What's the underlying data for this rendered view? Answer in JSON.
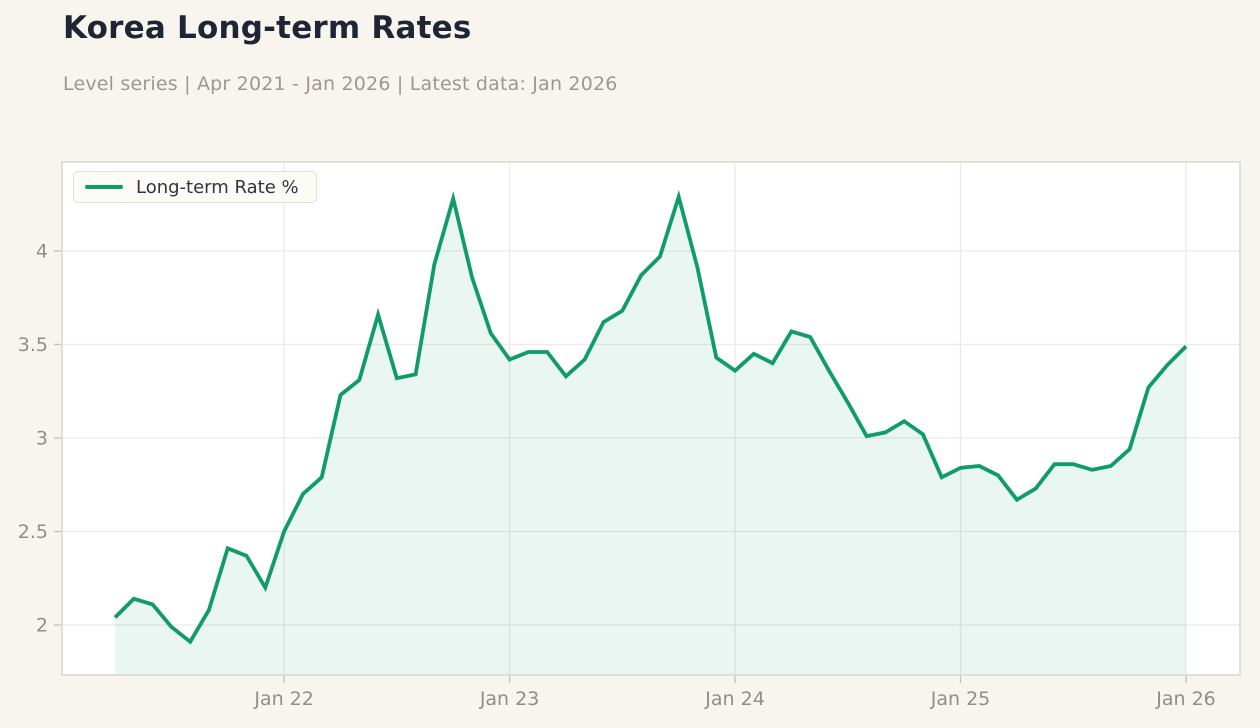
{
  "page": {
    "background": "#f8f5ef"
  },
  "header": {
    "title": "Korea Long-term Rates",
    "subtitle": "Level series | Apr 2021 - Jan 2026 | Latest data: Jan 2026"
  },
  "legend": {
    "label": "Long-term Rate %",
    "box_background": "#fcfbf6"
  },
  "colors": {
    "title": "#1e2635",
    "subtitle": "#9d978f",
    "line": "#0f9c66",
    "area_fill": "rgba(15,156,102,0.09)",
    "plot_background": "#ffffff",
    "frame": "#d8d6cf",
    "grid": "#ebebe7",
    "tick_mark": "#c2c0b9",
    "axis_text": "#908e88",
    "legend_text": "#33333d"
  },
  "chart_data": {
    "type": "area",
    "title": "Korea Long-term Rates",
    "series_name": "Long-term Rate %",
    "xlabel": "",
    "ylabel": "",
    "x_range": [
      "Apr 2021",
      "Jan 2026"
    ],
    "ylim": [
      1.73,
      4.48
    ],
    "grid": true,
    "legend_position": "top-left",
    "months": [
      "Apr 2021",
      "May 2021",
      "Jun 2021",
      "Jul 2021",
      "Aug 2021",
      "Sep 2021",
      "Oct 2021",
      "Nov 2021",
      "Dec 2021",
      "Jan 2022",
      "Feb 2022",
      "Mar 2022",
      "Apr 2022",
      "May 2022",
      "Jun 2022",
      "Jul 2022",
      "Aug 2022",
      "Sep 2022",
      "Oct 2022",
      "Nov 2022",
      "Dec 2022",
      "Jan 2023",
      "Feb 2023",
      "Mar 2023",
      "Apr 2023",
      "May 2023",
      "Jun 2023",
      "Jul 2023",
      "Aug 2023",
      "Sep 2023",
      "Oct 2023",
      "Nov 2023",
      "Dec 2023",
      "Jan 2024",
      "Feb 2024",
      "Mar 2024",
      "Apr 2024",
      "May 2024",
      "Jun 2024",
      "Jul 2024",
      "Aug 2024",
      "Sep 2024",
      "Oct 2024",
      "Nov 2024",
      "Dec 2024",
      "Jan 2025",
      "Feb 2025",
      "Mar 2025",
      "Apr 2025",
      "May 2025",
      "Jun 2025",
      "Jul 2025",
      "Aug 2025",
      "Sep 2025",
      "Oct 2025",
      "Nov 2025",
      "Dec 2025",
      "Jan 2026"
    ],
    "values": [
      2.04,
      2.14,
      2.11,
      1.99,
      1.91,
      2.08,
      2.41,
      2.37,
      2.2,
      2.5,
      2.7,
      2.79,
      3.23,
      3.31,
      3.66,
      3.32,
      3.34,
      3.93,
      4.28,
      3.86,
      3.56,
      3.42,
      3.46,
      3.46,
      3.33,
      3.42,
      3.62,
      3.68,
      3.87,
      3.97,
      4.29,
      3.91,
      3.43,
      3.36,
      3.45,
      3.4,
      3.57,
      3.54,
      3.36,
      3.19,
      3.01,
      3.03,
      3.09,
      3.02,
      2.79,
      2.84,
      2.85,
      2.8,
      2.67,
      2.73,
      2.86,
      2.86,
      2.83,
      2.85,
      2.94,
      3.27,
      3.39,
      3.49
    ],
    "y_ticks": [
      {
        "value": 2,
        "label": "2"
      },
      {
        "value": 2.5,
        "label": "2.5"
      },
      {
        "value": 3,
        "label": "3"
      },
      {
        "value": 3.5,
        "label": "3.5"
      },
      {
        "value": 4,
        "label": "4"
      }
    ],
    "x_ticks": [
      {
        "month_index": 9,
        "label": "Jan 22"
      },
      {
        "month_index": 21,
        "label": "Jan 23"
      },
      {
        "month_index": 33,
        "label": "Jan 24"
      },
      {
        "month_index": 45,
        "label": "Jan 25"
      },
      {
        "month_index": 57,
        "label": "Jan 26"
      }
    ]
  }
}
